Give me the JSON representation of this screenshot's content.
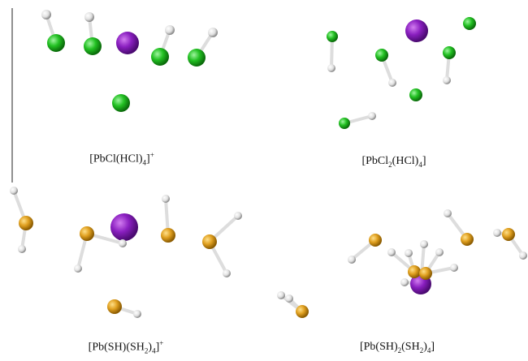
{
  "panels": [
    {
      "caption": [
        "[PbCl(HCl)",
        "4",
        "]",
        "+"
      ]
    },
    {
      "caption": [
        "[PbCl",
        "2",
        "(HCl)",
        "4",
        "]"
      ]
    },
    {
      "caption": [
        "[Pb(SH)(SH",
        "2",
        ")",
        "4",
        "]",
        "+"
      ]
    },
    {
      "caption": [
        "[Pb(SH)",
        "2",
        "(SH",
        "2",
        ")",
        "4",
        "]"
      ]
    }
  ]
}
